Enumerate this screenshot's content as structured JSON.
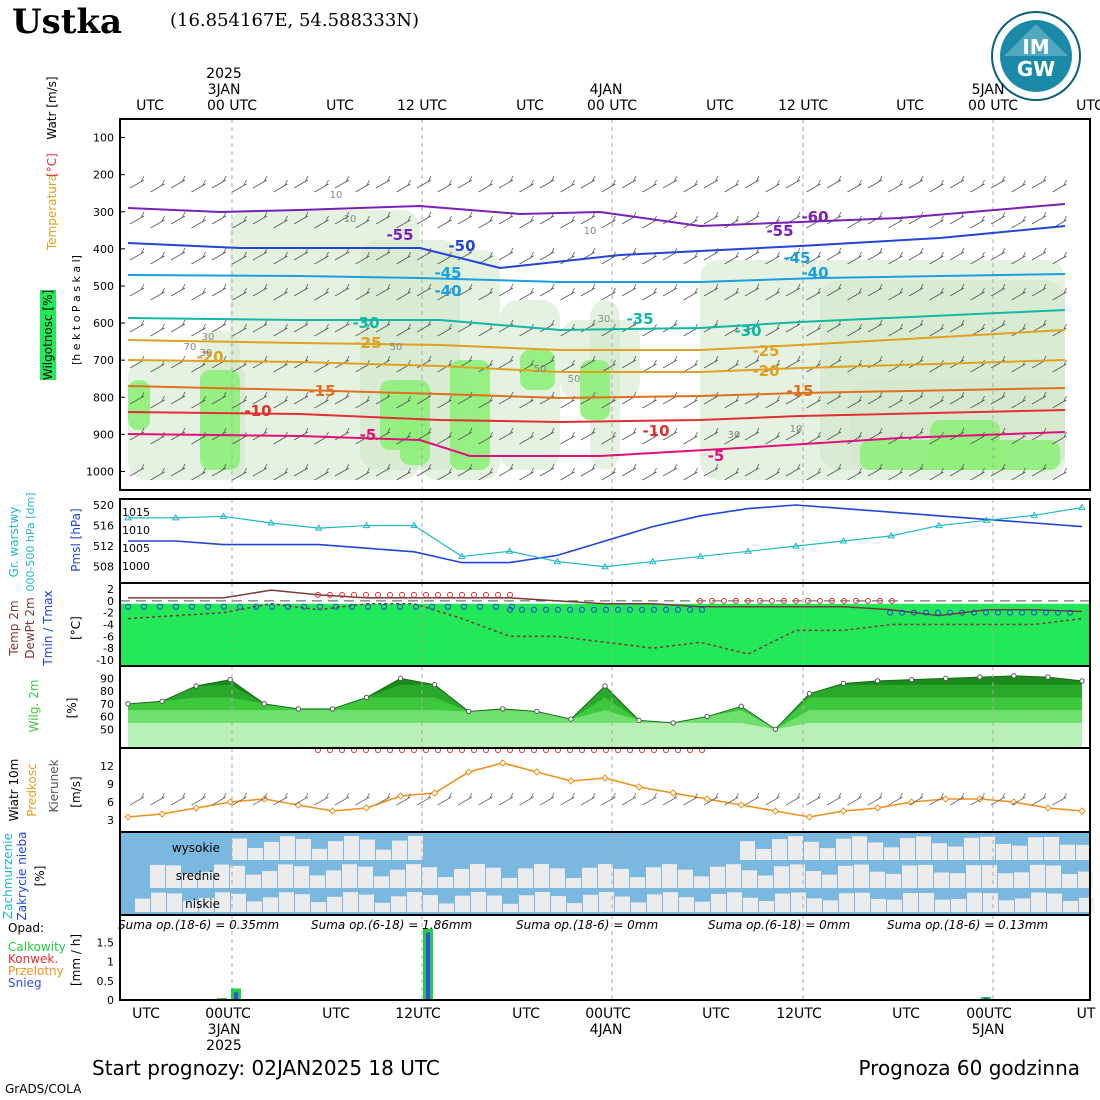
{
  "header": {
    "station": "Ustka",
    "coords": "(16.854167E, 54.588333N)",
    "logo_text_top": "IM",
    "logo_text_bottom": "GW"
  },
  "footer": {
    "start": "Start prognozy: 02JAN2025 18 UTC",
    "forecast": "Prognoza 60 godzinna",
    "credit": "GrADS/COLA"
  },
  "time_axis": {
    "top_labels": [
      "UTC",
      "00 UTC",
      "UTC",
      "12 UTC",
      "UTC",
      "00 UTC",
      "UTC",
      "12 UTC",
      "UTC",
      "00 UTC",
      "UTC"
    ],
    "bottom_labels": [
      "UTC",
      "00UTC",
      "UTC",
      "12UTC",
      "UTC",
      "00UTC",
      "UTC",
      "12UTC",
      "UTC",
      "00UTC",
      "UT"
    ],
    "date_labels": [
      {
        "day": "3JAN",
        "year": "2025"
      },
      {
        "day": "4JAN",
        "year": ""
      },
      {
        "day": "5JAN",
        "year": ""
      }
    ]
  },
  "panel_labels": {
    "wind": "Watr [m/s]",
    "temp": "Temperatura",
    "temp_unit": "[°C]",
    "humidity": "Wilgotnosc [%]",
    "hpa": "[h e k t o P a s k a l]",
    "gr_warstwy": "Gr. warstwy",
    "gr_range": "000-500 hPa [dm]",
    "pmsl": "Pmsl [hPa]",
    "temp2m": "Temp 2m",
    "dewpt": "DewPt 2m",
    "tminmax": "Tmin / Tmax",
    "temp_unit2": "[°C]",
    "wilg2m": "Wilg. 2m",
    "pct": "[%]",
    "wiatr10m": "Wiatr 10m",
    "predkosc": "Predkosc",
    "kierunek": "Kierunek",
    "ms": "[m/s]",
    "zachmurzenie": "Zachmurzenie",
    "zakrycie": "Zakrycie nieba",
    "pct2": "[%]",
    "wysokie": "wysokie",
    "srednie": "srednie",
    "niskie": "niskie",
    "opad": "Opad:",
    "calkowity": "Calkowity",
    "konwek": "Konwek.",
    "przelotny": "Przelotny",
    "snieg": "Snieg",
    "mmh": "[mm / h]",
    "sums": [
      "Suma op.(18-6) = 0.35mm",
      "Suma op.(6-18) = 1.86mm",
      "Suma op.(18-6) = 0mm",
      "Suma op.(6-18) = 0mm",
      "Suma op.(18-6) = 0.13mm"
    ]
  },
  "colors": {
    "purple": "#7a1fb8",
    "blue": "#2045d8",
    "lightblue": "#18a0e0",
    "teal": "#10b8a8",
    "gold": "#e0a020",
    "orange": "#e07020",
    "red": "#e03030",
    "magenta": "#e0107a",
    "green": "#3ec83e",
    "cloudblue": "#7ab8e0"
  },
  "chart_data": [
    {
      "name": "cross-section",
      "type": "heatmap",
      "ylabel": "[h e k t o P a s k a l]",
      "y_ticks": [
        100,
        200,
        300,
        400,
        500,
        600,
        700,
        800,
        900,
        1000
      ],
      "ylim": [
        1050,
        50
      ],
      "isotherm_labels": [
        {
          "t": "-55",
          "color": "purple"
        },
        {
          "t": "-60",
          "color": "purple"
        },
        {
          "t": "-55",
          "color": "purple"
        },
        {
          "t": "-50",
          "color": "blue"
        },
        {
          "t": "-45",
          "color": "lightblue"
        },
        {
          "t": "-45",
          "color": "lightblue"
        },
        {
          "t": "-40",
          "color": "lightblue"
        },
        {
          "t": "-40",
          "color": "lightblue"
        },
        {
          "t": "-30",
          "color": "teal"
        },
        {
          "t": "-35",
          "color": "teal"
        },
        {
          "t": "-30",
          "color": "teal"
        },
        {
          "t": "-25",
          "color": "gold"
        },
        {
          "t": "-25",
          "color": "gold"
        },
        {
          "t": "-20",
          "color": "gold"
        },
        {
          "t": "-20",
          "color": "gold"
        },
        {
          "t": "-15",
          "color": "orange"
        },
        {
          "t": "-15",
          "color": "orange"
        },
        {
          "t": "-10",
          "color": "red"
        },
        {
          "t": "-10",
          "color": "red"
        },
        {
          "t": "-5",
          "color": "magenta"
        },
        {
          "t": "-5",
          "color": "magenta"
        }
      ],
      "rh_labels": [
        "10",
        "10",
        "10",
        "30",
        "70",
        "50",
        "50",
        "30",
        "10",
        "30",
        "50",
        "30"
      ]
    },
    {
      "name": "pressure-thickness",
      "type": "line",
      "y_left_ticks": [
        508,
        512,
        516,
        520
      ],
      "y_right_ticks": [
        1000,
        1005,
        1010,
        1015
      ],
      "series": [
        {
          "name": "Pmsl [hPa]",
          "values": [
            1007,
            1007,
            1006,
            1006,
            1006,
            1005,
            1004,
            1001,
            1001,
            1003,
            1007,
            1011,
            1014,
            1016,
            1017,
            1016,
            1015,
            1014,
            1013,
            1012,
            1011
          ]
        },
        {
          "name": "Gr. warstwy",
          "values": [
            517.5,
            517.5,
            517.8,
            516.5,
            515.5,
            516,
            516,
            510,
            511,
            509,
            508,
            509,
            510,
            511,
            512,
            513,
            514,
            516,
            517,
            518,
            519.5
          ]
        }
      ]
    },
    {
      "name": "temperature-2m",
      "type": "line",
      "y_ticks": [
        2,
        0,
        -2,
        -4,
        -6,
        -8,
        -10
      ],
      "series": [
        {
          "name": "Temp 2m",
          "values": [
            0.5,
            0.5,
            0.5,
            1.8,
            1,
            0.5,
            0.5,
            0.5,
            0.5,
            0,
            -0.5,
            -0.5,
            -1,
            -1,
            -1,
            -1,
            -1.5,
            -2.5,
            -1.5,
            -1.5,
            -1.8
          ]
        },
        {
          "name": "DewPt 2m",
          "values": [
            -3,
            -2.5,
            -2,
            -0.5,
            -1.5,
            -0.5,
            -0.5,
            -3,
            -6,
            -6,
            -7,
            -8,
            -7,
            -9,
            -5,
            -5,
            -4,
            -4,
            -4,
            -4,
            -3
          ]
        }
      ]
    },
    {
      "name": "humidity-2m",
      "type": "area",
      "y_ticks": [
        50,
        60,
        70,
        80,
        90
      ],
      "series": [
        {
          "name": "Wilg. 2m",
          "values": [
            70,
            72,
            84,
            89,
            70,
            66,
            66,
            75,
            90,
            85,
            64,
            66,
            64,
            58,
            84,
            57,
            55,
            60,
            68,
            50,
            78,
            86,
            88,
            89,
            90,
            91,
            92,
            91,
            88
          ]
        }
      ]
    },
    {
      "name": "wind-10m",
      "type": "line",
      "y_ticks": [
        3,
        6,
        9,
        12
      ],
      "series": [
        {
          "name": "Predkosc",
          "values": [
            3.5,
            4,
            5,
            6,
            6.5,
            5.5,
            4.5,
            5,
            7,
            7.5,
            11,
            12.5,
            11,
            9.5,
            10,
            8.5,
            7.5,
            6.5,
            5.5,
            4.5,
            3.5,
            4.5,
            5,
            6,
            6.5,
            6.5,
            6,
            5,
            4.5
          ]
        }
      ]
    },
    {
      "name": "cloud-cover",
      "type": "bar",
      "categories": [
        "niskie",
        "srednie",
        "wysokie"
      ],
      "levels": [
        "wysokie",
        "srednie",
        "niskie"
      ]
    },
    {
      "name": "precipitation",
      "type": "bar",
      "y_ticks": [
        0,
        0.5,
        1,
        1.5
      ],
      "series": [
        {
          "name": "Calkowity",
          "values": [
            0.05,
            0.3,
            1.85,
            0.08
          ]
        },
        {
          "name": "Snieg",
          "values": [
            0.03,
            0.2,
            1.75,
            0.06
          ]
        }
      ]
    }
  ]
}
